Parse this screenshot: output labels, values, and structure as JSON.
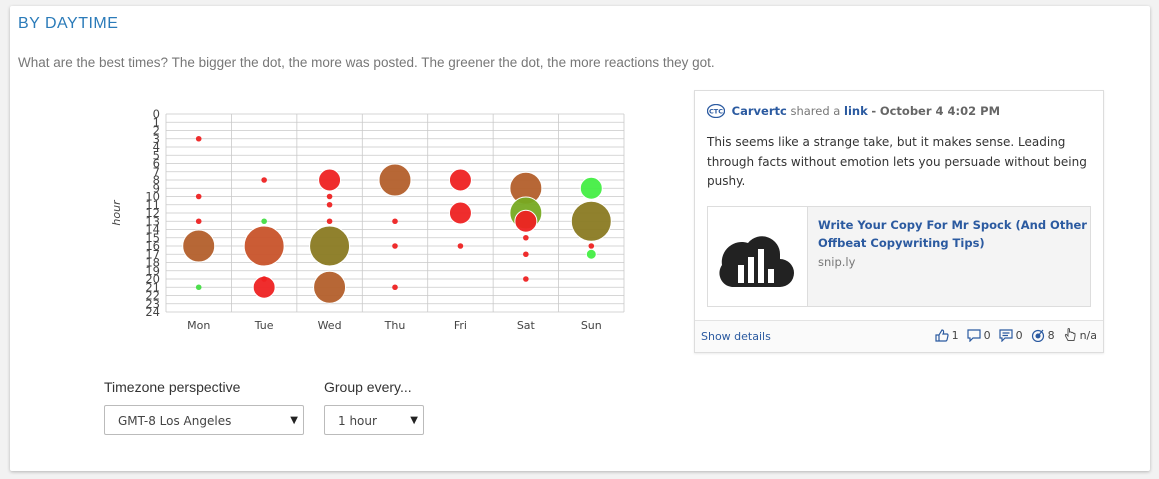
{
  "section": {
    "title": "BY DAYTIME",
    "subtitle": "What are the best times? The bigger the dot, the more was posted. The greener the dot, the more reactions they got."
  },
  "chart_data": {
    "type": "scatter",
    "ylabel": "hour",
    "xlabel": "",
    "categories": [
      "Mon",
      "Tue",
      "Wed",
      "Thu",
      "Fri",
      "Sat",
      "Sun"
    ],
    "yticks": [
      "0",
      "1",
      "2",
      "3",
      "4",
      "5",
      "6",
      "7",
      "8",
      "9",
      "10",
      "11",
      "12",
      "13",
      "14",
      "15",
      "16",
      "17",
      "18",
      "19",
      "20",
      "21",
      "22",
      "23",
      "24"
    ],
    "ylim": [
      0,
      24
    ],
    "y_reversed": true,
    "grid": true,
    "points": [
      {
        "day": "Mon",
        "hour": 3,
        "size": 1,
        "color": "#ee2222"
      },
      {
        "day": "Mon",
        "hour": 10,
        "size": 1,
        "color": "#ee2222"
      },
      {
        "day": "Mon",
        "hour": 13,
        "size": 1,
        "color": "#ee2222"
      },
      {
        "day": "Mon",
        "hour": 16,
        "size": 4,
        "color": "#b35f2b"
      },
      {
        "day": "Mon",
        "hour": 21,
        "size": 1,
        "color": "#44dd44"
      },
      {
        "day": "Tue",
        "hour": 8,
        "size": 1,
        "color": "#ee2222"
      },
      {
        "day": "Tue",
        "hour": 13,
        "size": 1,
        "color": "#44dd44"
      },
      {
        "day": "Tue",
        "hour": 16,
        "size": 5,
        "color": "#c8532a"
      },
      {
        "day": "Tue",
        "hour": 21,
        "size": 3,
        "color": "#ee2222"
      },
      {
        "day": "Tue",
        "hour": 20,
        "size": 1,
        "color": "#ee2222"
      },
      {
        "day": "Wed",
        "hour": 8,
        "size": 3,
        "color": "#ee2222"
      },
      {
        "day": "Wed",
        "hour": 10,
        "size": 1,
        "color": "#ee2222"
      },
      {
        "day": "Wed",
        "hour": 11,
        "size": 1,
        "color": "#ee2222"
      },
      {
        "day": "Wed",
        "hour": 13,
        "size": 1,
        "color": "#ee2222"
      },
      {
        "day": "Wed",
        "hour": 16,
        "size": 5,
        "color": "#8a7a22"
      },
      {
        "day": "Wed",
        "hour": 21,
        "size": 4,
        "color": "#b35f2b"
      },
      {
        "day": "Thu",
        "hour": 8,
        "size": 4,
        "color": "#b35f2b"
      },
      {
        "day": "Thu",
        "hour": 13,
        "size": 1,
        "color": "#ee2222"
      },
      {
        "day": "Thu",
        "hour": 16,
        "size": 1,
        "color": "#ee2222"
      },
      {
        "day": "Thu",
        "hour": 21,
        "size": 1,
        "color": "#ee2222"
      },
      {
        "day": "Fri",
        "hour": 8,
        "size": 3,
        "color": "#ee2222"
      },
      {
        "day": "Fri",
        "hour": 12,
        "size": 3,
        "color": "#ee2222"
      },
      {
        "day": "Fri",
        "hour": 16,
        "size": 1,
        "color": "#ee2222"
      },
      {
        "day": "Sat",
        "hour": 9,
        "size": 4,
        "color": "#b35f2b"
      },
      {
        "day": "Sat",
        "hour": 12,
        "size": 4,
        "color": "#77aa22"
      },
      {
        "day": "Sat",
        "hour": 13,
        "size": 3,
        "color": "#ee2222"
      },
      {
        "day": "Sat",
        "hour": 15,
        "size": 1,
        "color": "#ee2222"
      },
      {
        "day": "Sat",
        "hour": 17,
        "size": 1,
        "color": "#ee2222"
      },
      {
        "day": "Sat",
        "hour": 20,
        "size": 1,
        "color": "#ee2222"
      },
      {
        "day": "Sun",
        "hour": 9,
        "size": 3,
        "color": "#44ee44"
      },
      {
        "day": "Sun",
        "hour": 13,
        "size": 5,
        "color": "#8a7a22"
      },
      {
        "day": "Sun",
        "hour": 16,
        "size": 1,
        "color": "#ee2222"
      },
      {
        "day": "Sun",
        "hour": 17,
        "size": 2,
        "color": "#44ee44"
      }
    ]
  },
  "controls": {
    "timezone_label": "Timezone perspective",
    "timezone_value": "GMT-8 Los Angeles",
    "group_label": "Group every...",
    "group_value": "1 hour"
  },
  "post": {
    "author": "Carvertc",
    "shared_text": "shared a",
    "link_word": "link",
    "separator": "-",
    "time": "October 4 4:02 PM",
    "text": "This seems like a strange take, but it makes sense. Leading through facts without emotion lets you persuade without being pushy.",
    "link_title": "Write Your Copy For Mr Spock (And Other Offbeat Copywriting Tips)",
    "link_domain": "snip.ly",
    "details_label": "Show details",
    "likes": "1",
    "comments": "0",
    "shares": "0",
    "reach": "8",
    "clicks": "n/a",
    "accent_color": "#2b5aa0"
  }
}
